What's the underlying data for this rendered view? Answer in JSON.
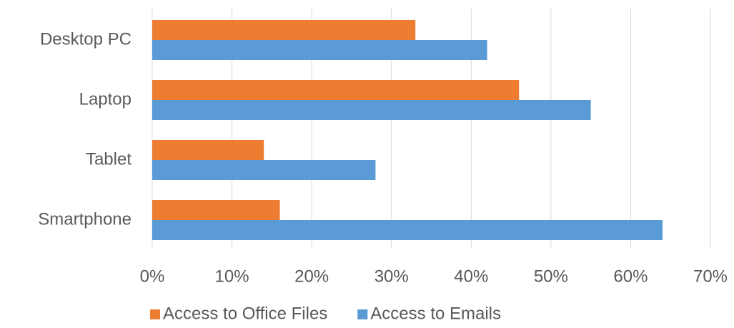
{
  "chart_data": {
    "type": "hbar",
    "categories": [
      "Desktop PC",
      "Laptop",
      "Tablet",
      "Smartphone"
    ],
    "series": [
      {
        "name": "Access to Office Files",
        "color": "#ed7d31",
        "values": [
          33,
          46,
          14,
          16
        ]
      },
      {
        "name": "Access to Emails",
        "color": "#5b9bd5",
        "values": [
          42,
          55,
          28,
          64
        ]
      }
    ],
    "xlim": [
      0,
      70
    ],
    "xticks": [
      {
        "value": 0,
        "label": "0%"
      },
      {
        "value": 10,
        "label": "10%"
      },
      {
        "value": 20,
        "label": "20%"
      },
      {
        "value": 30,
        "label": "30%"
      },
      {
        "value": 40,
        "label": "40%"
      },
      {
        "value": 50,
        "label": "50%"
      },
      {
        "value": 60,
        "label": "60%"
      },
      {
        "value": 70,
        "label": "70%"
      }
    ],
    "grid": true,
    "legend": "bottom"
  }
}
